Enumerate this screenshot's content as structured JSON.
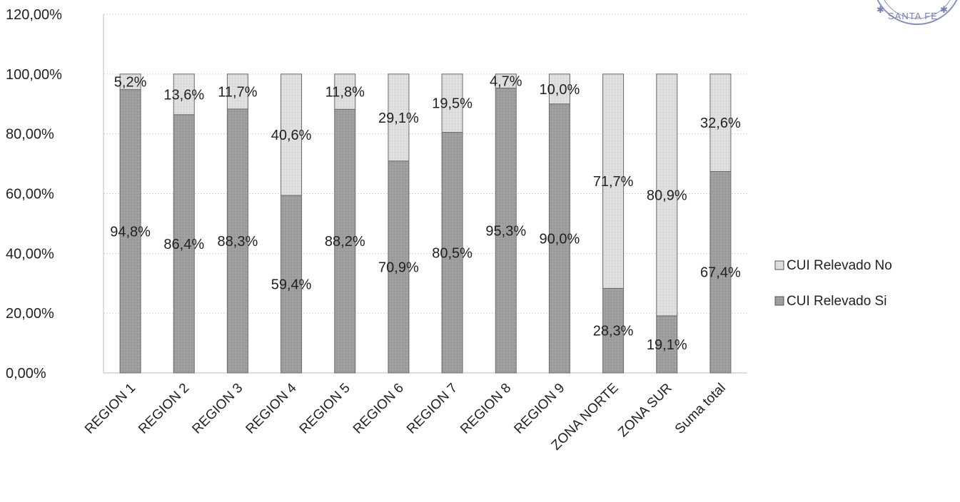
{
  "chart_data": {
    "type": "bar",
    "stacked": true,
    "categories": [
      "REGION 1",
      "REGION 2",
      "REGION 3",
      "REGION 4",
      "REGION 5",
      "REGION 6",
      "REGION 7",
      "REGION 8",
      "REGION 9",
      "ZONA NORTE",
      "ZONA SUR",
      "Suma total"
    ],
    "series": [
      {
        "name": "CUI Relevado Si",
        "values": [
          94.8,
          86.4,
          88.3,
          59.4,
          88.2,
          70.9,
          80.5,
          95.3,
          90.0,
          28.3,
          19.1,
          67.4
        ],
        "labels": [
          "94,8%",
          "86,4%",
          "88,3%",
          "59,4%",
          "88,2%",
          "70,9%",
          "80,5%",
          "95,3%",
          "90,0%",
          "28,3%",
          "19,1%",
          "67,4%"
        ],
        "color": "#9c9c9c"
      },
      {
        "name": "CUI Relevado No",
        "values": [
          5.2,
          13.6,
          11.7,
          40.6,
          11.8,
          29.1,
          19.5,
          4.7,
          10.0,
          71.7,
          80.9,
          32.6
        ],
        "labels": [
          "5,2%",
          "13,6%",
          "11,7%",
          "40,6%",
          "11,8%",
          "29,1%",
          "19,5%",
          "4,7%",
          "10,0%",
          "71,7%",
          "80,9%",
          "32,6%"
        ],
        "color": "#dcdcdc"
      }
    ],
    "yticks": [
      "0,00%",
      "20,00%",
      "40,00%",
      "60,00%",
      "80,00%",
      "100,00%",
      "120,00%"
    ],
    "ylim": [
      0,
      120
    ],
    "grid": true,
    "legend": "right",
    "legend_entries": [
      "CUI Relevado No",
      "CUI Relevado Si"
    ],
    "title": "",
    "xlabel": "",
    "ylabel": ""
  },
  "stamp": {
    "text": "SANTA FE"
  }
}
